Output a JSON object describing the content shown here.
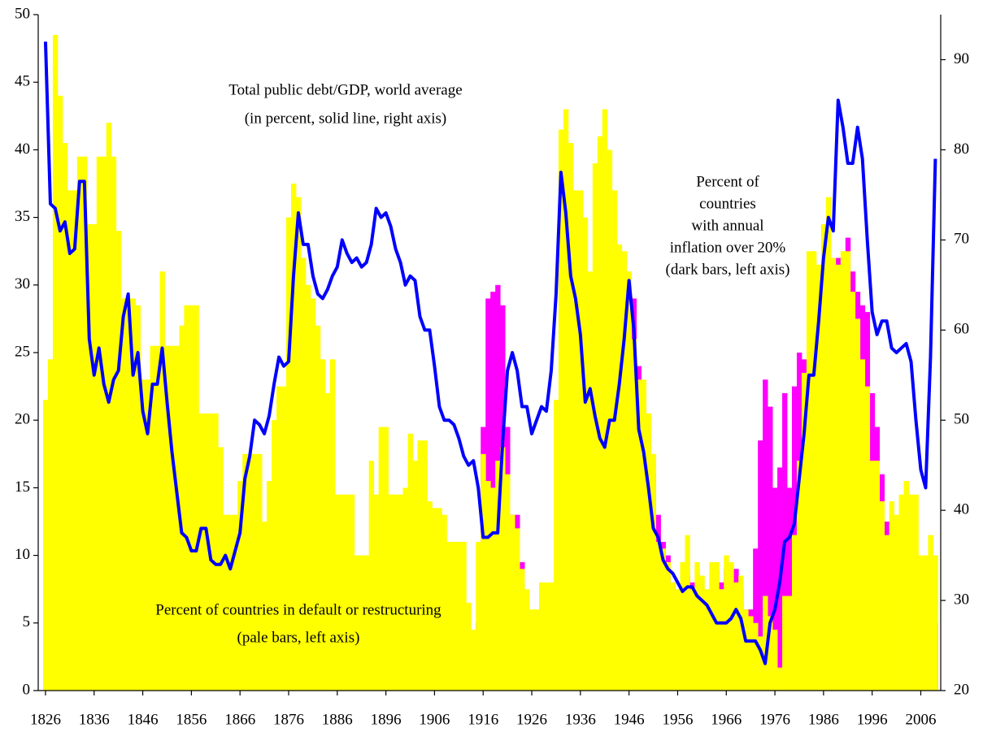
{
  "chart_data": {
    "type": "bar_line",
    "annotations": [
      [
        "Total public debt/GDP, world average",
        "(in percent, solid line, right axis)"
      ],
      [
        "Percent of",
        "countries",
        "with annual",
        "inflation over 20%",
        "(dark bars, left axis)"
      ],
      [
        "Percent of countries in default or restructuring",
        "(pale bars, left axis)"
      ]
    ],
    "x": [
      1826,
      1827,
      1828,
      1829,
      1830,
      1831,
      1832,
      1833,
      1834,
      1835,
      1836,
      1837,
      1838,
      1839,
      1840,
      1841,
      1842,
      1843,
      1844,
      1845,
      1846,
      1847,
      1848,
      1849,
      1850,
      1851,
      1852,
      1853,
      1854,
      1855,
      1856,
      1857,
      1858,
      1859,
      1860,
      1861,
      1862,
      1863,
      1864,
      1865,
      1866,
      1867,
      1868,
      1869,
      1870,
      1871,
      1872,
      1873,
      1874,
      1875,
      1876,
      1877,
      1878,
      1879,
      1880,
      1881,
      1882,
      1883,
      1884,
      1885,
      1886,
      1887,
      1888,
      1889,
      1890,
      1891,
      1892,
      1893,
      1894,
      1895,
      1896,
      1897,
      1898,
      1899,
      1900,
      1901,
      1902,
      1903,
      1904,
      1905,
      1906,
      1907,
      1908,
      1909,
      1910,
      1911,
      1912,
      1913,
      1914,
      1915,
      1916,
      1917,
      1918,
      1919,
      1920,
      1921,
      1922,
      1923,
      1924,
      1925,
      1926,
      1927,
      1928,
      1929,
      1930,
      1931,
      1932,
      1933,
      1934,
      1935,
      1936,
      1937,
      1938,
      1939,
      1940,
      1941,
      1942,
      1943,
      1944,
      1945,
      1946,
      1947,
      1948,
      1949,
      1950,
      1951,
      1952,
      1953,
      1954,
      1955,
      1956,
      1957,
      1958,
      1959,
      1960,
      1961,
      1962,
      1963,
      1964,
      1965,
      1966,
      1967,
      1968,
      1969,
      1970,
      1971,
      1972,
      1973,
      1974,
      1975,
      1976,
      1977,
      1978,
      1979,
      1980,
      1981,
      1982,
      1983,
      1984,
      1985,
      1986,
      1987,
      1988,
      1989,
      1990,
      1991,
      1992,
      1993,
      1994,
      1995,
      1996,
      1997,
      1998,
      1999,
      2000,
      2001,
      2002,
      2003,
      2004,
      2005,
      2006,
      2007,
      2008,
      2009
    ],
    "series": [
      {
        "kind": "bar",
        "color": "#ff00ff",
        "values": [
          0,
          0,
          0,
          0,
          0,
          0,
          0,
          0,
          0,
          0,
          0,
          0,
          0,
          0,
          0,
          0,
          0,
          0,
          0,
          0,
          0,
          0,
          0,
          0,
          0,
          0,
          0,
          0,
          0,
          0,
          0,
          0,
          0,
          0,
          0,
          0,
          0,
          0,
          0,
          0,
          0,
          0,
          0,
          0,
          0,
          0,
          0,
          0,
          0,
          0,
          0,
          0,
          0,
          0,
          0,
          0,
          0,
          0,
          0,
          0,
          0,
          0,
          0,
          0,
          0,
          0,
          0,
          0,
          0,
          0,
          0,
          0,
          0,
          0,
          0,
          0,
          0,
          0,
          0,
          0,
          0,
          0,
          0,
          0,
          0,
          0,
          0,
          0,
          0,
          5,
          19.5,
          29,
          29.5,
          30,
          28.5,
          19.5,
          13,
          13,
          9.5,
          5,
          3,
          3,
          2,
          2,
          2,
          3,
          5,
          5,
          5,
          5,
          5,
          5,
          5,
          8,
          12,
          15,
          18,
          20,
          22,
          25,
          27,
          29,
          24,
          22,
          19,
          16,
          13,
          11,
          10,
          8,
          7,
          7.5,
          8.5,
          8,
          7.5,
          7,
          7,
          7.5,
          9,
          8,
          9,
          8.5,
          9,
          7.5,
          6,
          6,
          10.5,
          18.5,
          23,
          21,
          15,
          16.5,
          22,
          15,
          22.5,
          25,
          24.5,
          24.5,
          22,
          26,
          28,
          28.5,
          27,
          32,
          32,
          33.5,
          31,
          29.5,
          28.5,
          28,
          22,
          19.5,
          16,
          12.5,
          11,
          9,
          8,
          7,
          6,
          6,
          5,
          5,
          6,
          5
        ]
      },
      {
        "kind": "bar",
        "color": "#ffff00",
        "values": [
          21.5,
          24.5,
          48.5,
          44,
          40.5,
          37,
          37,
          39.5,
          39.5,
          34.5,
          34.5,
          39.5,
          39.5,
          42,
          39.5,
          34,
          29,
          29,
          29,
          28.5,
          23,
          23,
          25.5,
          25.5,
          31,
          25.5,
          25.5,
          25.5,
          27,
          28.5,
          28.5,
          28.5,
          20.5,
          20.5,
          20.5,
          20.5,
          18,
          13,
          13,
          13,
          15.5,
          17.5,
          17.5,
          17.5,
          17.5,
          12.5,
          15.5,
          20,
          22.5,
          22.5,
          35,
          37.5,
          36.5,
          32,
          30,
          29,
          27,
          24.5,
          22,
          24.5,
          14.5,
          14.5,
          14.5,
          14.5,
          10,
          10,
          10,
          17,
          14.5,
          19.5,
          19.5,
          14.5,
          14.5,
          14.5,
          15,
          19,
          17,
          18.5,
          18.5,
          14,
          13.5,
          13.5,
          13,
          11,
          11,
          11,
          11,
          6.5,
          4.5,
          11,
          17.5,
          15.5,
          15,
          17,
          18,
          16,
          13,
          12,
          9,
          7.5,
          6,
          6,
          8,
          8,
          8,
          21.5,
          41.5,
          43,
          40.5,
          37,
          37,
          35,
          31,
          39,
          41,
          43,
          40,
          37,
          33,
          32.5,
          31,
          26,
          23,
          23,
          20.5,
          17.5,
          11,
          10.5,
          9.5,
          8,
          7.5,
          9.5,
          11.5,
          7.5,
          9.5,
          8.5,
          7.5,
          9.5,
          9.5,
          7.5,
          10,
          9.5,
          8,
          8.5,
          6,
          5.5,
          5,
          4,
          7,
          5.5,
          4.5,
          1.7,
          7,
          7,
          11.5,
          17,
          23.5,
          32.5,
          32.5,
          31.5,
          34.5,
          36.5,
          32,
          31.5,
          32.5,
          32.5,
          29.5,
          27.5,
          24.5,
          22.5,
          17,
          17,
          14,
          11.5,
          14,
          13,
          14.5,
          15.5,
          14.5,
          14.5,
          10,
          10,
          11.5,
          10
        ]
      },
      {
        "kind": "line",
        "axis": "y2",
        "color": "#0000ff",
        "values": [
          92,
          74,
          73.5,
          71,
          72,
          68.5,
          69,
          76.5,
          76.5,
          59,
          55,
          58,
          54,
          52,
          54.5,
          55.5,
          61.5,
          64,
          55,
          57.5,
          51,
          48.5,
          54,
          54,
          58,
          52,
          46.5,
          42,
          37.5,
          37,
          35.5,
          35.5,
          38,
          38,
          34.5,
          34,
          34,
          35,
          33.5,
          35.5,
          37.5,
          43.5,
          46,
          50,
          49.5,
          48.5,
          50.5,
          54,
          57,
          56,
          56.5,
          66,
          73,
          69.5,
          69.5,
          66,
          64,
          63.5,
          64.5,
          66,
          67,
          70,
          68.5,
          67.5,
          68,
          67,
          67.5,
          69.5,
          73.5,
          72.5,
          73,
          71.5,
          69,
          67.5,
          65,
          66,
          65.5,
          61.5,
          60,
          60,
          56,
          51.5,
          50,
          50,
          49.5,
          48,
          46,
          45,
          45.5,
          42.5,
          37,
          37,
          37.5,
          37.5,
          47.5,
          55.5,
          57.5,
          55.5,
          51.5,
          51.5,
          48.5,
          50,
          51.5,
          51,
          55.5,
          64,
          77.5,
          73,
          66,
          63.5,
          59.5,
          52,
          53.5,
          50.5,
          48,
          47,
          50,
          50,
          54,
          59,
          65.5,
          60,
          49,
          46.5,
          42.5,
          38,
          37,
          34.5,
          33.5,
          33,
          32,
          31,
          31.5,
          31.5,
          30.5,
          30,
          29.5,
          28.5,
          27.5,
          27.5,
          27.5,
          28,
          29,
          28,
          25.5,
          25.5,
          25.5,
          24.5,
          23,
          27.5,
          29,
          32,
          36.5,
          37,
          38.5,
          43.5,
          48.5,
          55,
          55,
          61,
          68,
          72.5,
          71,
          85.5,
          82.5,
          78.5,
          78.5,
          82.5,
          79,
          70,
          62,
          59.5,
          61,
          61,
          58,
          57.5,
          58,
          58.5,
          56.5,
          50,
          44.5,
          42.5,
          57,
          79
        ]
      }
    ],
    "xlim": [
      1824.5,
      2010.1
    ],
    "xticks": [
      1826,
      1836,
      1846,
      1856,
      1866,
      1876,
      1886,
      1896,
      1906,
      1916,
      1926,
      1936,
      1946,
      1956,
      1966,
      1976,
      1986,
      1996,
      2006
    ],
    "ylim": [
      0,
      50
    ],
    "yticks": [
      0,
      5,
      10,
      15,
      20,
      25,
      30,
      35,
      40,
      45,
      50
    ],
    "y2lim": [
      20,
      95
    ],
    "y2ticks": [
      20,
      30,
      40,
      50,
      60,
      70,
      80,
      90
    ]
  }
}
